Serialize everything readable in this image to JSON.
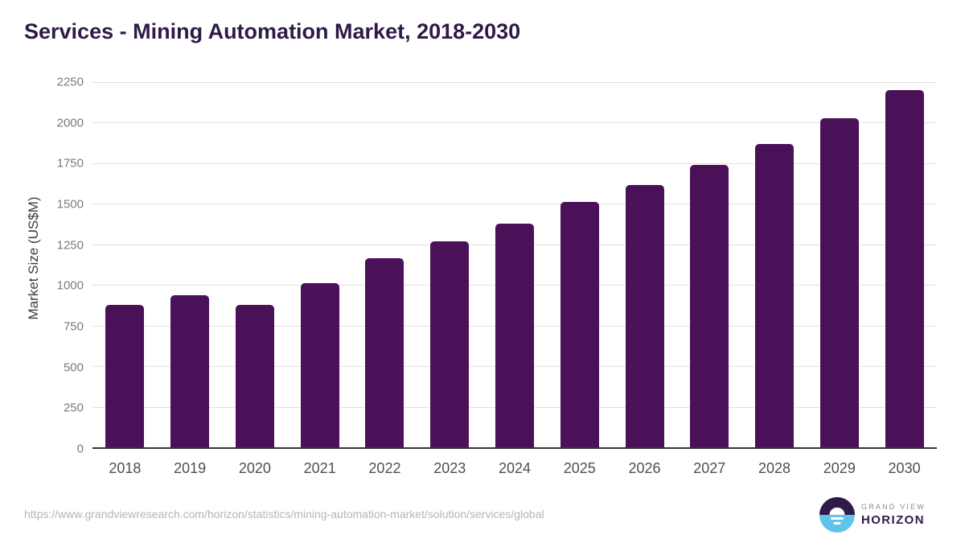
{
  "title": "Services - Mining Automation Market, 2018-2030",
  "chart_data": {
    "type": "bar",
    "title": "Services - Mining Automation Market, 2018-2030",
    "categories": [
      "2018",
      "2019",
      "2020",
      "2021",
      "2022",
      "2023",
      "2024",
      "2025",
      "2026",
      "2027",
      "2028",
      "2029",
      "2030"
    ],
    "values": [
      875,
      935,
      875,
      1010,
      1165,
      1270,
      1380,
      1510,
      1615,
      1740,
      1870,
      2025,
      2200
    ],
    "xlabel": "",
    "ylabel": "Market Size (US$M)",
    "ylim": [
      0,
      2250
    ],
    "yticks": [
      0,
      250,
      500,
      750,
      1000,
      1250,
      1500,
      1750,
      2000,
      2250
    ],
    "grid": true,
    "legend_position": "none",
    "bar_color": "#4a1159"
  },
  "footer": {
    "source_url": "https://www.grandviewresearch.com/horizon/statistics/mining-automation-market/solution/services/global",
    "logo": {
      "top": "GRAND VIEW",
      "bottom": "HORIZON"
    }
  },
  "colors": {
    "title_text": "#2e1a47",
    "bar": "#4a1159",
    "gridline": "#e2e2e2",
    "axis_baseline": "#333333",
    "y_tick_text": "#7a7a7a",
    "x_tick_text": "#4f4f4f",
    "url_text": "#b3b5b7",
    "logo_purple": "#2e1b47",
    "logo_blue": "#5fc3ec"
  }
}
